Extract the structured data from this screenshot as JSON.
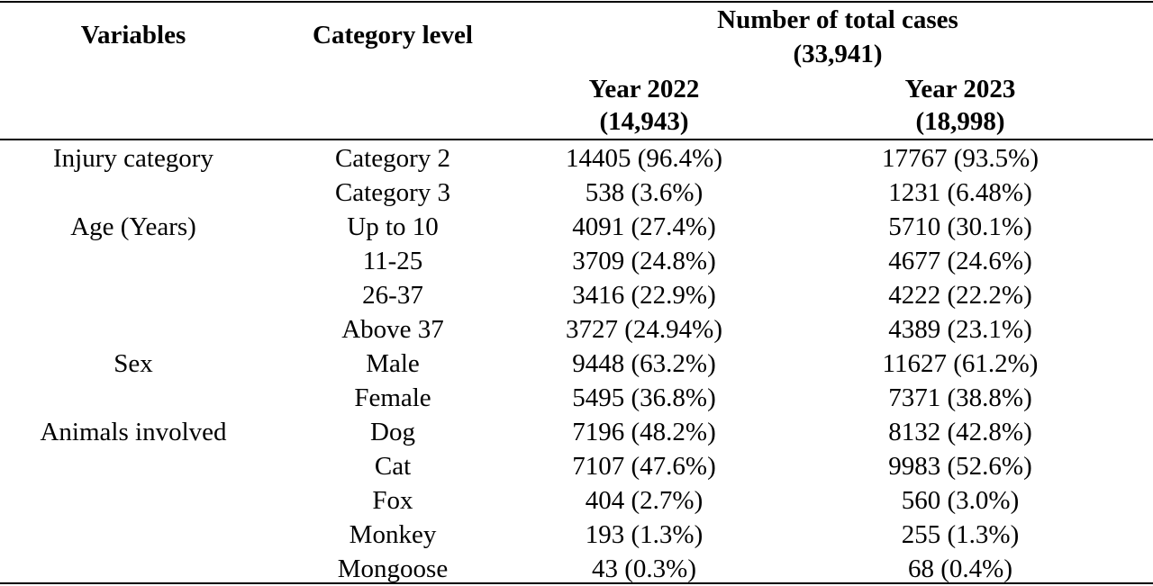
{
  "table": {
    "headers": {
      "variables": "Variables",
      "category_level": "Category level",
      "total_cases_line1": "Number of total cases",
      "total_cases_line2": "(33,941)",
      "year2022_line1": "Year 2022",
      "year2022_line2": "(14,943)",
      "year2023_line1": "Year 2023",
      "year2023_line2": "(18,998)"
    },
    "rows": [
      {
        "variable": "Injury category",
        "category": "Category 2",
        "y2022": "14405 (96.4%)",
        "y2023": "17767 (93.5%)"
      },
      {
        "variable": "",
        "category": "Category 3",
        "y2022": "538 (3.6%)",
        "y2023": "1231 (6.48%)"
      },
      {
        "variable": "Age (Years)",
        "category": "Up to 10",
        "y2022": "4091 (27.4%)",
        "y2023": "5710 (30.1%)"
      },
      {
        "variable": "",
        "category": "11-25",
        "y2022": "3709 (24.8%)",
        "y2023": "4677 (24.6%)"
      },
      {
        "variable": "",
        "category": "26-37",
        "y2022": "3416 (22.9%)",
        "y2023": "4222 (22.2%)"
      },
      {
        "variable": "",
        "category": "Above 37",
        "y2022": "3727 (24.94%)",
        "y2023": "4389 (23.1%)"
      },
      {
        "variable": "Sex",
        "category": "Male",
        "y2022": "9448 (63.2%)",
        "y2023": "11627 (61.2%)"
      },
      {
        "variable": "",
        "category": "Female",
        "y2022": "5495 (36.8%)",
        "y2023": "7371 (38.8%)"
      },
      {
        "variable": "Animals involved",
        "category": "Dog",
        "y2022": "7196 (48.2%)",
        "y2023": "8132 (42.8%)"
      },
      {
        "variable": "",
        "category": "Cat",
        "y2022": "7107 (47.6%)",
        "y2023": "9983 (52.6%)"
      },
      {
        "variable": "",
        "category": "Fox",
        "y2022": "404 (2.7%)",
        "y2023": "560 (3.0%)"
      },
      {
        "variable": "",
        "category": "Monkey",
        "y2022": "193 (1.3%)",
        "y2023": "255 (1.3%)"
      },
      {
        "variable": "",
        "category": "Mongoose",
        "y2022": "43 (0.3%)",
        "y2023": "68 (0.4%)"
      }
    ]
  }
}
